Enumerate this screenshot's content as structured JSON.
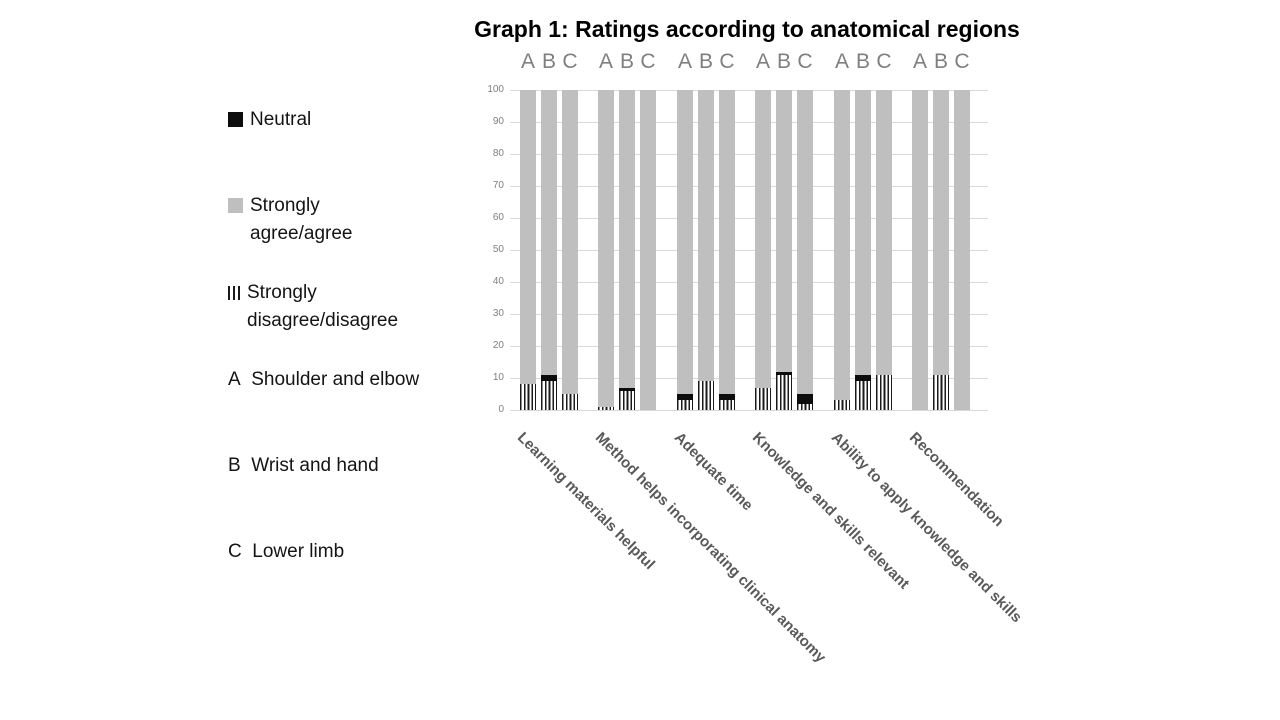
{
  "legend": {
    "series": [
      {
        "label": "Neutral",
        "swatch": "neutral-black-square"
      },
      {
        "label": "Strongly agree/agree",
        "swatch": "agree-gray-square"
      },
      {
        "label": "Strongly disagree/disagree",
        "swatch": "disagree-stripes"
      }
    ],
    "regions": [
      {
        "letter": "A",
        "label": "Shoulder and elbow"
      },
      {
        "letter": "B",
        "label": "Wrist and hand"
      },
      {
        "letter": "C",
        "label": "Lower limb"
      }
    ]
  },
  "colors": {
    "agree_gray": "#bfbfbf",
    "neutral_black": "#0d0d0d",
    "stripe_black": "#1a1a1a",
    "gridline": "#d9d9d9",
    "axis_text": "#808080",
    "bar_letters": "#7f7f7f",
    "category_text": "#595959"
  },
  "chart_data": {
    "type": "bar",
    "stacked": true,
    "title": "Graph 1: Ratings according to anatomical regions",
    "categories": [
      "Learning materials helpful",
      "Method helps incorporating clinical anatomy",
      "Adequate time",
      "Knowledge and skills relevant",
      "Ability to apply knowledge and skills",
      "Recommendation"
    ],
    "bar_labels": [
      "A",
      "B",
      "C"
    ],
    "xlabel": "",
    "ylabel": "",
    "ylim": [
      0,
      100
    ],
    "y_ticks": [
      0,
      10,
      20,
      30,
      40,
      50,
      60,
      70,
      80,
      90,
      100
    ],
    "grid": true,
    "legend_position": "left",
    "series": [
      {
        "name": "Strongly disagree/disagree",
        "style": "vertical-stripes",
        "values": [
          [
            8,
            9,
            5
          ],
          [
            1,
            6,
            0
          ],
          [
            3,
            9,
            3
          ],
          [
            7,
            11,
            2
          ],
          [
            3,
            9,
            11
          ],
          [
            0,
            11,
            0
          ]
        ]
      },
      {
        "name": "Neutral",
        "style": "solid-black",
        "values": [
          [
            0,
            2,
            0
          ],
          [
            0,
            1,
            0
          ],
          [
            2,
            0,
            2
          ],
          [
            0,
            1,
            3
          ],
          [
            0,
            2,
            0
          ],
          [
            0,
            0,
            0
          ]
        ]
      },
      {
        "name": "Strongly agree/agree",
        "style": "solid-gray",
        "values": [
          [
            92,
            89,
            95
          ],
          [
            99,
            93,
            100
          ],
          [
            95,
            91,
            95
          ],
          [
            93,
            88,
            95
          ],
          [
            97,
            89,
            89
          ],
          [
            100,
            89,
            100
          ]
        ]
      }
    ]
  }
}
